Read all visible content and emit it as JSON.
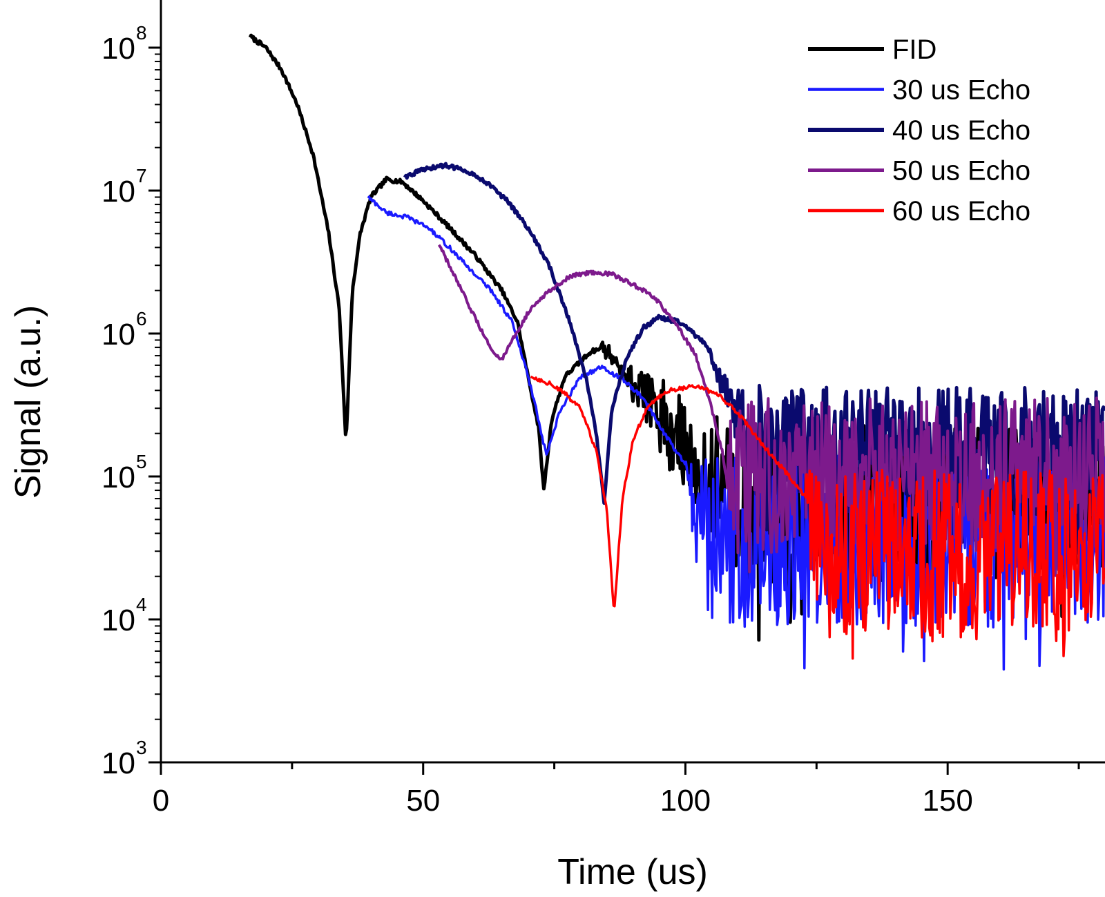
{
  "chart_data": {
    "type": "line",
    "title": "",
    "xlabel": "Time (us)",
    "ylabel": "Signal (a.u.)",
    "xscale": "linear",
    "yscale": "log",
    "xlim": [
      0,
      180
    ],
    "ylim": [
      1000,
      150000000
    ],
    "x_ticks": [
      0,
      50,
      100,
      150
    ],
    "x_tick_labels": [
      "0",
      "50",
      "100",
      "150"
    ],
    "y_ticks": [
      1000,
      10000,
      100000,
      1000000,
      10000000,
      100000000
    ],
    "y_tick_labels": [
      {
        "base": "10",
        "exp": "3"
      },
      {
        "base": "10",
        "exp": "4"
      },
      {
        "base": "10",
        "exp": "5"
      },
      {
        "base": "10",
        "exp": "6"
      },
      {
        "base": "10",
        "exp": "7"
      },
      {
        "base": "10",
        "exp": "8"
      }
    ],
    "grid": false,
    "legend_position": "top-right",
    "series": [
      {
        "name": "FID",
        "color": "#000000",
        "width": 5,
        "anchors": [
          [
            17,
            120000000
          ],
          [
            20,
            100000000
          ],
          [
            23,
            70000000
          ],
          [
            26,
            40000000
          ],
          [
            29,
            18000000
          ],
          [
            32,
            5000000
          ],
          [
            34,
            1500000
          ],
          [
            35.3,
            170000
          ],
          [
            36.5,
            2000000
          ],
          [
            38,
            5000000
          ],
          [
            40,
            9000000
          ],
          [
            43,
            12000000
          ],
          [
            46,
            11500000
          ],
          [
            50,
            8500000
          ],
          [
            55,
            5500000
          ],
          [
            60,
            3500000
          ],
          [
            65,
            2000000
          ],
          [
            68,
            1200000
          ],
          [
            70,
            500000
          ],
          [
            72,
            220000
          ],
          [
            73,
            80000
          ],
          [
            74.5,
            250000
          ],
          [
            77,
            500000
          ],
          [
            82,
            750000
          ],
          [
            88,
            850000
          ],
          [
            94,
            750000
          ],
          [
            100,
            600000
          ],
          [
            104,
            500000
          ],
          [
            108,
            300000
          ],
          [
            112,
            150000
          ]
        ],
        "noise": {
          "from": 84,
          "to": 180,
          "level": 65000,
          "amp": 0.55
        }
      },
      {
        "name": "30 us Echo",
        "color": "#1a1aff",
        "width": 3.5,
        "anchors": [
          [
            39.5,
            9000000
          ],
          [
            43,
            7000000
          ],
          [
            47,
            6500000
          ],
          [
            51,
            5500000
          ],
          [
            55,
            4000000
          ],
          [
            59,
            2800000
          ],
          [
            63,
            2000000
          ],
          [
            67,
            1200000
          ],
          [
            70,
            500000
          ],
          [
            71.5,
            300000
          ],
          [
            72.5,
            200000
          ],
          [
            73.5,
            140000
          ],
          [
            76,
            280000
          ],
          [
            80,
            500000
          ],
          [
            84,
            580000
          ],
          [
            88,
            480000
          ],
          [
            92,
            350000
          ],
          [
            96,
            200000
          ],
          [
            100,
            120000
          ],
          [
            104,
            70000
          ]
        ],
        "noise": {
          "from": 100,
          "to": 180,
          "level": 35000,
          "amp": 0.6
        }
      },
      {
        "name": "40 us Echo",
        "color": "#0a0a6e",
        "width": 5,
        "anchors": [
          [
            46.5,
            12500000
          ],
          [
            50,
            14000000
          ],
          [
            54,
            15000000
          ],
          [
            58,
            14000000
          ],
          [
            62,
            11500000
          ],
          [
            66,
            8500000
          ],
          [
            70,
            5500000
          ],
          [
            74,
            3000000
          ],
          [
            78,
            1200000
          ],
          [
            81,
            500000
          ],
          [
            83,
            200000
          ],
          [
            84.5,
            65000
          ],
          [
            86,
            300000
          ],
          [
            89,
            700000
          ],
          [
            92,
            1100000
          ],
          [
            95,
            1300000
          ],
          [
            99,
            1200000
          ],
          [
            103,
            900000
          ],
          [
            106,
            650000
          ],
          [
            110,
            400000
          ],
          [
            115,
            250000
          ]
        ],
        "noise": {
          "from": 105,
          "to": 180,
          "level": 150000,
          "amp": 0.45
        }
      },
      {
        "name": "50 us Echo",
        "color": "#7d1a8c",
        "width": 4,
        "anchors": [
          [
            53,
            4200000
          ],
          [
            56,
            2500000
          ],
          [
            59,
            1500000
          ],
          [
            62,
            900000
          ],
          [
            63.5,
            750000
          ],
          [
            65,
            650000
          ],
          [
            67,
            900000
          ],
          [
            70,
            1400000
          ],
          [
            74,
            2000000
          ],
          [
            78,
            2500000
          ],
          [
            82,
            2700000
          ],
          [
            86,
            2600000
          ],
          [
            90,
            2200000
          ],
          [
            94,
            1800000
          ],
          [
            98,
            1200000
          ],
          [
            102,
            700000
          ],
          [
            105,
            300000
          ],
          [
            107,
            150000
          ],
          [
            108.5,
            70000
          ],
          [
            110,
            90000
          ]
        ],
        "noise": {
          "from": 108,
          "to": 180,
          "level": 100000,
          "amp": 0.55
        }
      },
      {
        "name": "60 us Echo",
        "color": "#ff0000",
        "width": 3.5,
        "anchors": [
          [
            70.5,
            500000
          ],
          [
            74,
            450000
          ],
          [
            77,
            380000
          ],
          [
            80,
            300000
          ],
          [
            83,
            150000
          ],
          [
            85,
            60000
          ],
          [
            86.4,
            11000
          ],
          [
            88,
            70000
          ],
          [
            90,
            180000
          ],
          [
            93,
            320000
          ],
          [
            97,
            400000
          ],
          [
            102,
            430000
          ],
          [
            106,
            380000
          ],
          [
            110,
            280000
          ],
          [
            114,
            180000
          ],
          [
            118,
            120000
          ],
          [
            122,
            80000
          ],
          [
            125,
            55000
          ]
        ],
        "noise": {
          "from": 123,
          "to": 180,
          "level": 28000,
          "amp": 0.6
        }
      }
    ]
  }
}
